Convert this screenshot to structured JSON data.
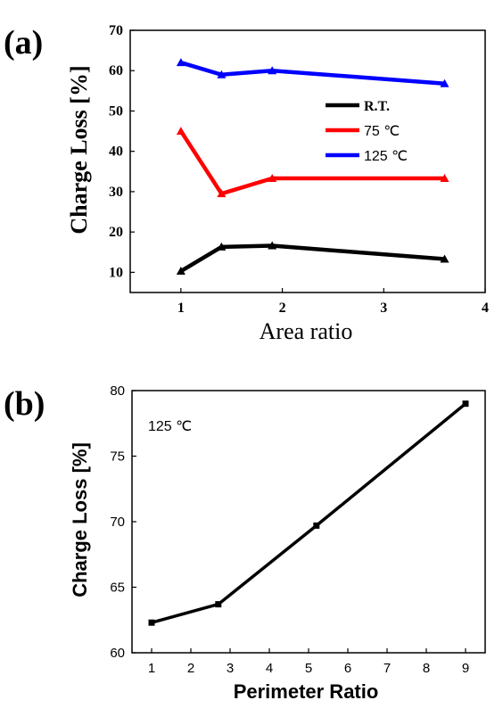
{
  "chart_data": [
    {
      "panel_label": "(a)",
      "type": "line",
      "xlabel": "Area ratio",
      "ylabel": "Charge Loss [%]",
      "xlim": [
        0.5,
        4
      ],
      "ylim": [
        5,
        70
      ],
      "xticks": [
        1,
        2,
        3,
        4
      ],
      "yticks": [
        10,
        20,
        30,
        40,
        50,
        60,
        70
      ],
      "grid": false,
      "legend_position": "right",
      "x": [
        1,
        1.4,
        1.9,
        3.6
      ],
      "series": [
        {
          "name": "R.T.",
          "color": "#000000",
          "values": [
            10.3,
            16.3,
            16.6,
            13.3
          ]
        },
        {
          "name": "75 ℃",
          "color": "#ff0000",
          "values": [
            45.0,
            29.5,
            33.3,
            33.3
          ]
        },
        {
          "name": "125 ℃",
          "color": "#0000ff",
          "values": [
            62.0,
            59.0,
            60.0,
            56.8
          ]
        }
      ]
    },
    {
      "panel_label": "(b)",
      "type": "line",
      "xlabel": "Perimeter Ratio",
      "ylabel": "Charge Loss [%]",
      "annotation": "125 ℃",
      "xlim": [
        0.5,
        9.5
      ],
      "ylim": [
        60,
        80
      ],
      "xticks": [
        1,
        2,
        3,
        4,
        5,
        6,
        7,
        8,
        9
      ],
      "yticks": [
        60,
        65,
        70,
        75,
        80
      ],
      "grid": false,
      "series": [
        {
          "name": "",
          "color": "#000000",
          "x": [
            1,
            2.7,
            5.2,
            9
          ],
          "values": [
            62.3,
            63.7,
            69.7,
            79.0
          ]
        }
      ]
    }
  ]
}
